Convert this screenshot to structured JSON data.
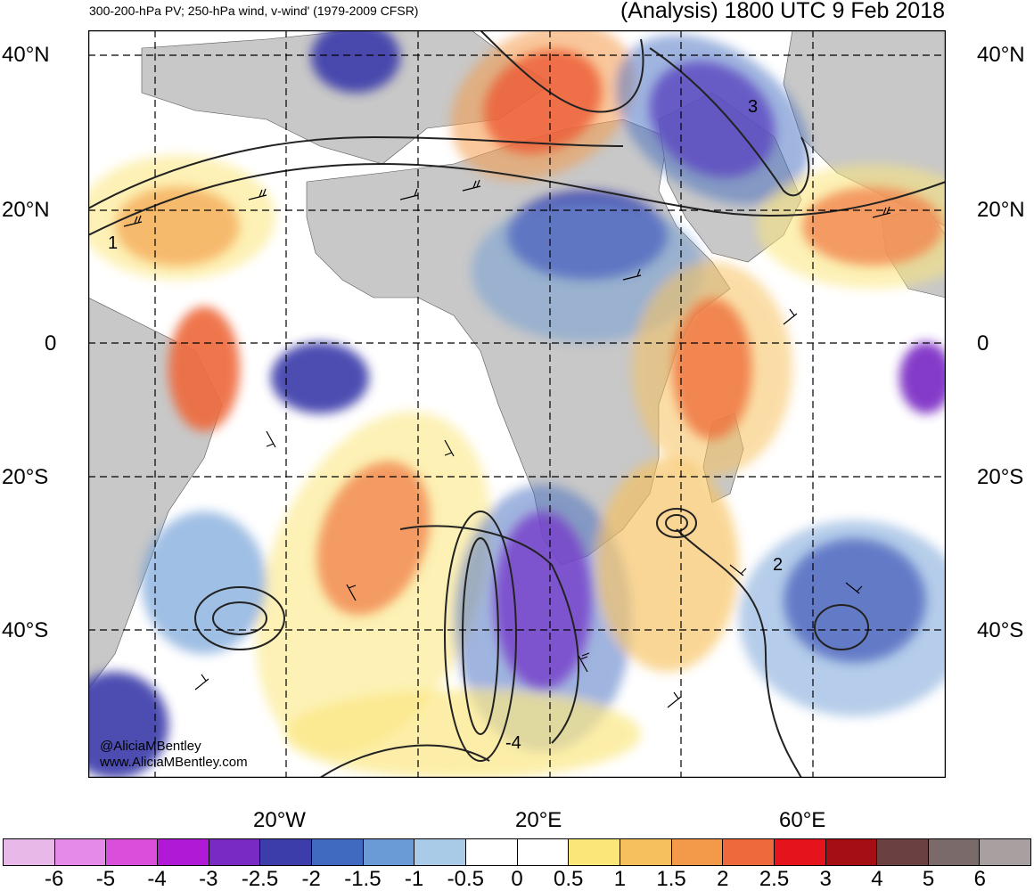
{
  "titles": {
    "left": "300-200-hPa PV; 250-hPa wind, v-wind' (1979-2009 CFSR)",
    "right": "(Analysis) 1800 UTC 9 Feb 2018"
  },
  "lat_labels": [
    "40°N",
    "20°N",
    "0",
    "20°S",
    "40°S"
  ],
  "lon_labels": [
    "20°W",
    "20°E",
    "60°E"
  ],
  "contour_labels": [
    "1",
    "3",
    "2",
    "-4"
  ],
  "credit": {
    "line1": "@AliciaMBentley",
    "line2": "www.AliciaMBentley.com"
  },
  "colorbar": {
    "labels": [
      "-6",
      "-5",
      "-4",
      "-3",
      "-2.5",
      "-2",
      "-1.5",
      "-1",
      "-0.5",
      "0",
      "0.5",
      "1",
      "1.5",
      "2",
      "2.5",
      "3",
      "4",
      "5",
      "6"
    ],
    "colors": [
      "#e8b8e8",
      "#e58ae8",
      "#d94fdb",
      "#b01ad6",
      "#7a2ac4",
      "#3c3dab",
      "#3f6ac0",
      "#6b9bd6",
      "#a9cbe8",
      "#ffffff",
      "#ffffff",
      "#fbe679",
      "#f6c15d",
      "#f39a4a",
      "#ee6a3c",
      "#e5141c",
      "#a50e12",
      "#6b4040",
      "#7a6a6a",
      "#a8a0a0"
    ]
  },
  "colors": {
    "land": "#c8c8c8",
    "grid": "#000000"
  }
}
